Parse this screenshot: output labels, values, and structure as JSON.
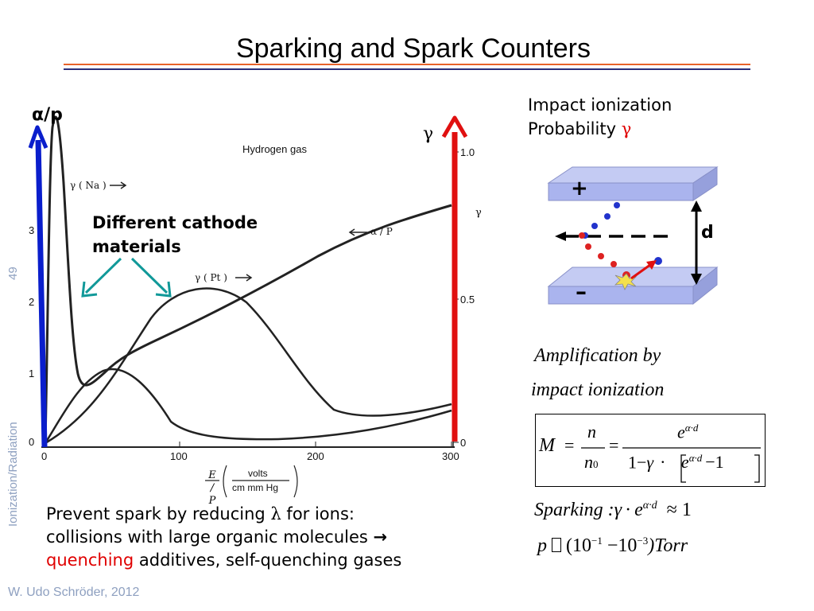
{
  "slide": {
    "title": "Sparking and Spark Counters",
    "slide_number": "49",
    "section": "Ionization/Radiation",
    "footer": "W. Udo Schröder, 2012",
    "colors": {
      "rule_orange": "#e8622a",
      "rule_navy": "#2b2f7a",
      "blue_arrow": "#0a1ecc",
      "red_arrow": "#e01010",
      "teal_arrow": "#119999",
      "plate": "#aab4ee"
    }
  },
  "graph": {
    "left_axis_label": "α/p",
    "right_axis_label": "γ",
    "figure_title": "Hydrogen gas",
    "curve_label_na": "γ ( Na )",
    "curve_label_pt": "γ ( Pt )",
    "curve_label_alpha": "α / P",
    "right_axis_gamma": "γ",
    "x_ticks": [
      "0",
      "100",
      "200",
      "300"
    ],
    "right_ticks": [
      "1.0",
      "0.5",
      "0"
    ],
    "left_ticks": [
      "3",
      "2",
      "1",
      "0"
    ],
    "xlabel_ep": "E / P",
    "xlabel_units_num": "volts",
    "xlabel_units_den": "cm mm Hg",
    "annotation": "Different cathode materials"
  },
  "impact": {
    "heading_line1": "Impact ionization",
    "heading_line2": "Probability",
    "gamma": "γ",
    "plus": "+",
    "minus": "–",
    "d": "d"
  },
  "formulas": {
    "amp_line1": "Amplification by",
    "amp_line2": "impact ionization",
    "M": "M",
    "n": "n",
    "n0": "n",
    "n0_sub": "0",
    "exp_base": "e",
    "exp_sup": "α·d",
    "denom_prefix": "1−",
    "gamma": "γ",
    "dot": "·",
    "minus_one": "−1",
    "eq": "=",
    "sparking": "Sparking :",
    "sparking_rhs": "≈ 1",
    "pressure": "p",
    "pressure_rhs": "(10",
    "exp_m1": "−1",
    "mid": " −10",
    "exp_m3": "−3",
    "torr": ")Torr"
  },
  "bottom_text": {
    "line1_pre": "Prevent spark by reducing ",
    "lambda": "λ",
    "line1_post": " for ions:",
    "line2": "collisions with large organic molecules ",
    "arrow": "→",
    "quench": "quenching",
    "line3_post": " additives, self-quenching gases"
  }
}
